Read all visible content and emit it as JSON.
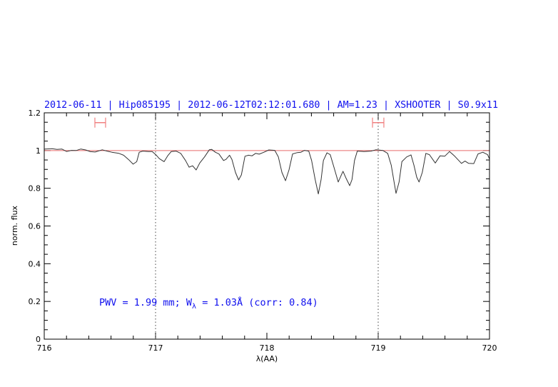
{
  "chart_data": {
    "type": "line",
    "title": "2012-06-11 | Hip085195 | 2012-06-12T02:12:01.680 | AM=1.23 | XSHOOTER | S0.9x11",
    "xlabel": "λ(AA)",
    "ylabel": "norm. flux",
    "xlim": [
      716,
      720
    ],
    "ylim": [
      0,
      1.2
    ],
    "xticks": [
      716,
      717,
      718,
      719,
      720
    ],
    "xtick_labels": [
      "716",
      "717",
      "718",
      "719",
      "720"
    ],
    "yticks": [
      0,
      0.2,
      0.4,
      0.6,
      0.8,
      1,
      1.2
    ],
    "ytick_labels": [
      "0",
      "0.2",
      "0.4",
      "0.6",
      "0.8",
      "1",
      "1.2"
    ],
    "x_minor_step": 0.2,
    "y_minor_step": 0.05,
    "grid": false,
    "reference_line": {
      "y": 1.0,
      "color": "#e86a6a"
    },
    "vertical_markers": [
      717,
      719
    ],
    "range_markers": [
      {
        "x_start": 716.455,
        "x_end": 716.551,
        "y": 1.148,
        "color": "#f08080"
      },
      {
        "x_start": 718.949,
        "x_end": 719.051,
        "y": 1.148,
        "color": "#f08080"
      }
    ],
    "annotation": {
      "parts": [
        "PWV = 1.99 mm; W",
        "λ",
        " = 1.03Å (corr: 0.84)"
      ],
      "x": 716.5,
      "y": 0.2,
      "color": "#1010ee"
    },
    "series": [
      {
        "color": "#333333",
        "x": [
          716.0,
          716.008,
          716.071,
          716.115,
          716.158,
          716.201,
          716.244,
          716.287,
          716.329,
          716.372,
          716.415,
          716.457,
          716.521,
          716.564,
          716.607,
          716.671,
          716.713,
          716.756,
          716.799,
          716.831,
          716.853,
          716.885,
          716.938,
          716.97,
          717.002,
          717.034,
          717.077,
          717.109,
          717.141,
          717.184,
          717.226,
          717.269,
          717.301,
          717.333,
          717.365,
          717.397,
          717.44,
          717.483,
          717.504,
          717.537,
          717.569,
          717.611,
          717.633,
          717.665,
          717.686,
          717.718,
          717.746,
          717.771,
          717.803,
          717.835,
          717.867,
          717.899,
          717.931,
          717.974,
          718.017,
          718.071,
          718.103,
          718.135,
          718.167,
          718.199,
          718.231,
          718.274,
          718.306,
          718.338,
          718.376,
          718.402,
          718.434,
          718.462,
          718.487,
          718.508,
          718.54,
          718.569,
          718.604,
          718.641,
          718.669,
          718.684,
          718.712,
          718.744,
          718.765,
          718.787,
          718.812,
          718.872,
          718.936,
          718.979,
          719.043,
          719.085,
          719.117,
          719.139,
          719.16,
          719.188,
          719.213,
          719.256,
          719.295,
          719.321,
          719.346,
          719.367,
          719.396,
          719.428,
          719.46,
          719.513,
          719.556,
          719.598,
          719.641,
          719.684,
          719.748,
          719.78,
          719.812,
          719.859,
          719.897,
          719.94,
          719.983,
          720.0
        ],
        "y": [
          1.006,
          1.008,
          1.01,
          1.006,
          1.008,
          0.995,
          1.001,
          1.0,
          1.008,
          1.003,
          0.994,
          0.992,
          1.004,
          0.997,
          0.991,
          0.985,
          0.975,
          0.953,
          0.928,
          0.941,
          0.991,
          0.997,
          0.995,
          0.995,
          0.978,
          0.957,
          0.941,
          0.972,
          0.995,
          0.997,
          0.985,
          0.947,
          0.912,
          0.919,
          0.897,
          0.934,
          0.966,
          1.004,
          1.006,
          0.991,
          0.982,
          0.947,
          0.953,
          0.975,
          0.953,
          0.884,
          0.844,
          0.871,
          0.97,
          0.975,
          0.972,
          0.985,
          0.981,
          0.991,
          1.003,
          1.001,
          0.966,
          0.884,
          0.84,
          0.897,
          0.982,
          0.989,
          0.991,
          1.001,
          0.997,
          0.947,
          0.846,
          0.77,
          0.846,
          0.947,
          0.988,
          0.978,
          0.909,
          0.833,
          0.871,
          0.89,
          0.852,
          0.814,
          0.846,
          0.947,
          0.997,
          0.995,
          0.997,
          1.004,
          1.0,
          0.985,
          0.922,
          0.846,
          0.773,
          0.833,
          0.941,
          0.966,
          0.977,
          0.922,
          0.859,
          0.833,
          0.884,
          0.985,
          0.978,
          0.934,
          0.972,
          0.97,
          0.995,
          0.972,
          0.932,
          0.944,
          0.932,
          0.931,
          0.982,
          0.991,
          0.978,
          0.955
        ]
      }
    ]
  }
}
